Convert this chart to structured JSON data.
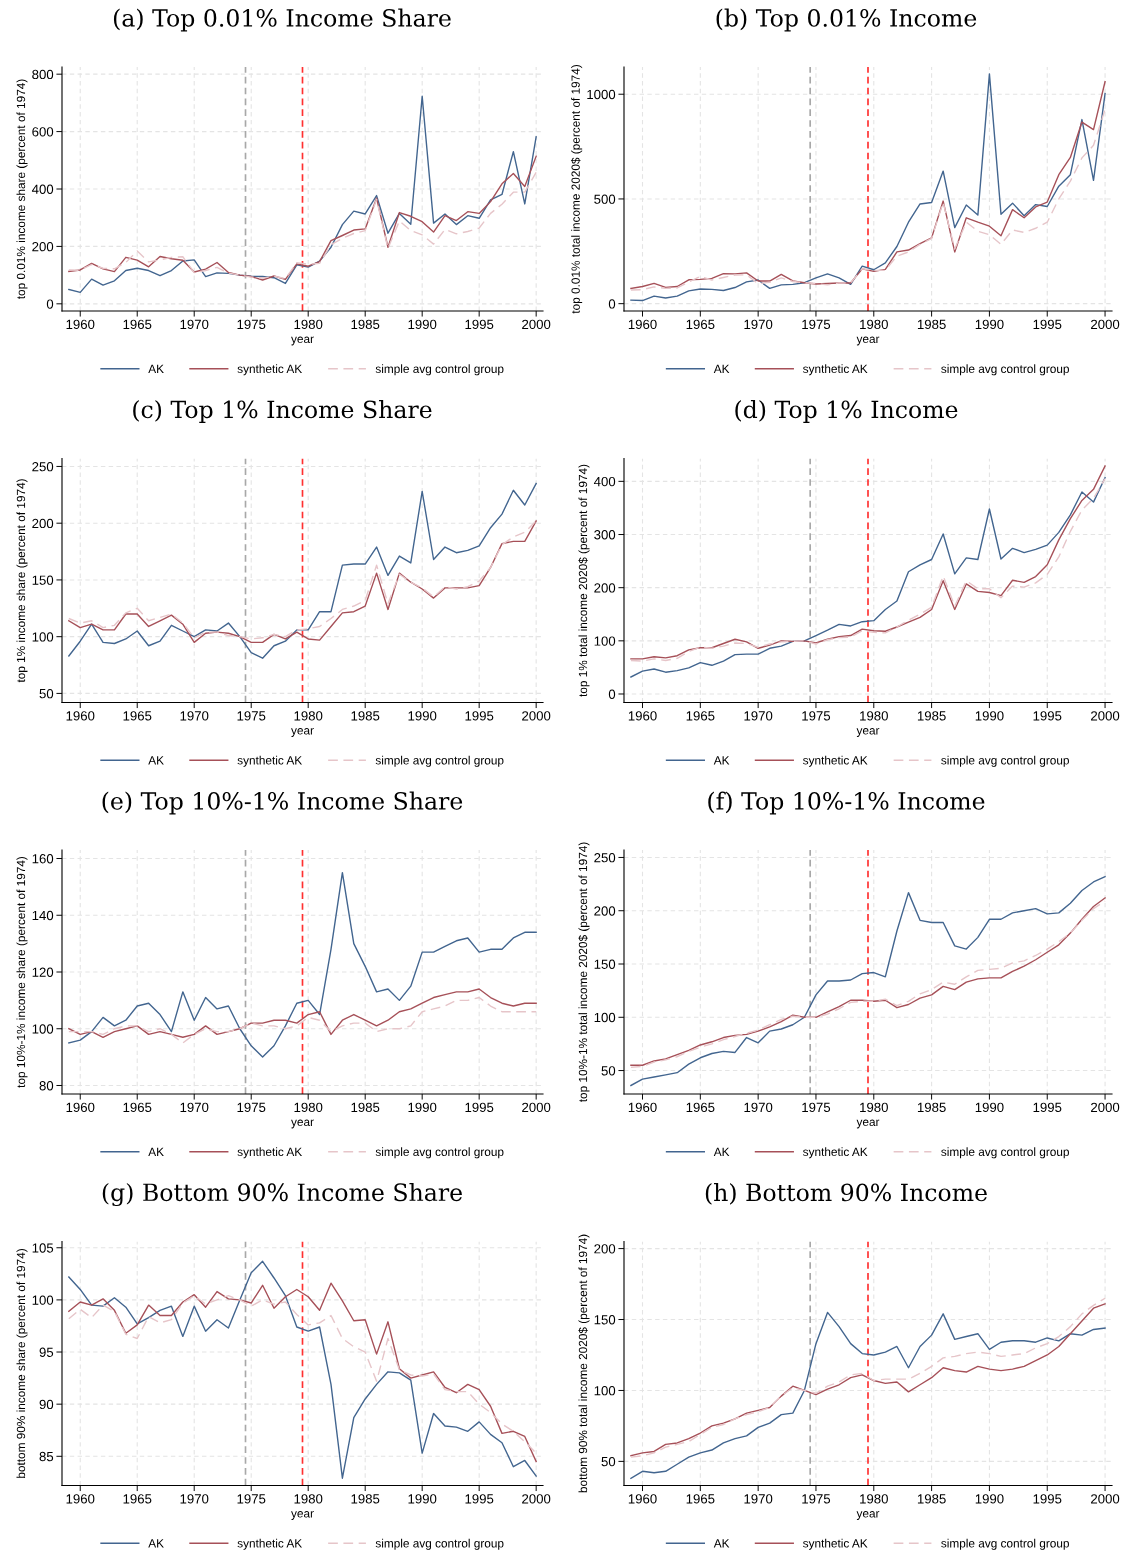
{
  "chart_data": [
    {
      "type": "line",
      "title": "(a) Top 0.01% Income Share",
      "xlabel": "year",
      "ylabel": "top 0.01% income share (percent of 1974)",
      "x": [
        1959,
        1960,
        1961,
        1962,
        1963,
        1964,
        1965,
        1966,
        1967,
        1968,
        1969,
        1970,
        1971,
        1972,
        1973,
        1974,
        1975,
        1976,
        1977,
        1978,
        1979,
        1980,
        1981,
        1982,
        1983,
        1984,
        1985,
        1986,
        1987,
        1988,
        1989,
        1990,
        1991,
        1992,
        1993,
        1994,
        1995,
        1996,
        1997,
        1998,
        1999,
        2000
      ],
      "series": [
        {
          "name": "AK",
          "color": "#42658f",
          "line_style": "solid",
          "values": [
            50,
            40,
            86,
            65,
            80,
            116,
            124,
            116,
            98,
            116,
            149,
            153,
            95,
            108,
            106,
            100,
            96,
            95,
            91,
            71,
            136,
            128,
            149,
            197,
            276,
            323,
            313,
            377,
            246,
            315,
            277,
            723,
            281,
            313,
            276,
            307,
            298,
            362,
            381,
            530,
            348,
            582
          ]
        },
        {
          "name": "synthetic AK",
          "color": "#a65058",
          "line_style": "solid",
          "values": [
            113,
            118,
            141,
            122,
            112,
            162,
            152,
            129,
            165,
            157,
            152,
            111,
            121,
            144,
            109,
            100,
            95,
            83,
            97,
            85,
            139,
            131,
            147,
            220,
            238,
            257,
            261,
            368,
            197,
            318,
            305,
            286,
            250,
            307,
            290,
            321,
            315,
            356,
            418,
            454,
            409,
            514
          ]
        },
        {
          "name": "simple avg control group",
          "color": "#e6c5c9",
          "line_style": "dashed",
          "values": [
            118,
            117,
            137,
            124,
            122,
            144,
            184,
            146,
            153,
            162,
            164,
            109,
            116,
            127,
            107,
            100,
            93,
            90,
            96,
            88,
            143,
            138,
            141,
            206,
            228,
            245,
            255,
            364,
            193,
            289,
            255,
            240,
            208,
            259,
            244,
            252,
            264,
            315,
            347,
            389,
            389,
            458
          ]
        }
      ],
      "xlim": [
        1958.4,
        2000.6
      ],
      "xticks": [
        1960,
        1965,
        1970,
        1975,
        1980,
        1985,
        1990,
        1995,
        2000
      ],
      "ylim": [
        -25,
        825
      ],
      "yticks": [
        0,
        200,
        400,
        600,
        800
      ],
      "ref_lines": [
        {
          "axis": "x",
          "value": 1974.5,
          "color": "#a8a8a8",
          "line_style": "dashed"
        },
        {
          "axis": "x",
          "value": 1979.5,
          "color": "#ff3030",
          "line_style": "dashed"
        }
      ],
      "grid": true,
      "legend": "bottom"
    },
    {
      "type": "line",
      "title": "(b) Top 0.01% Income",
      "xlabel": "year",
      "ylabel": "top 0.01% total income 2020$ (percent of 1974)",
      "x": [
        1959,
        1960,
        1961,
        1962,
        1963,
        1964,
        1965,
        1966,
        1967,
        1968,
        1969,
        1970,
        1971,
        1972,
        1973,
        1974,
        1975,
        1976,
        1977,
        1978,
        1979,
        1980,
        1981,
        1982,
        1983,
        1984,
        1985,
        1986,
        1987,
        1988,
        1989,
        1990,
        1991,
        1992,
        1993,
        1994,
        1995,
        1996,
        1997,
        1998,
        1999,
        2000
      ],
      "series": [
        {
          "name": "AK",
          "color": "#42658f",
          "line_style": "solid",
          "values": [
            17,
            15,
            36,
            27,
            36,
            61,
            70,
            68,
            63,
            77,
            104,
            113,
            73,
            90,
            92,
            100,
            123,
            142,
            123,
            92,
            179,
            162,
            195,
            273,
            389,
            476,
            483,
            633,
            363,
            471,
            423,
            1097,
            427,
            480,
            420,
            473,
            464,
            561,
            616,
            879,
            589,
            1003
          ]
        },
        {
          "name": "synthetic AK",
          "color": "#a65058",
          "line_style": "solid",
          "values": [
            73,
            82,
            97,
            78,
            82,
            114,
            116,
            121,
            143,
            142,
            147,
            108,
            108,
            140,
            109,
            100,
            94,
            96,
            99,
            99,
            166,
            154,
            164,
            247,
            256,
            287,
            314,
            490,
            247,
            410,
            389,
            370,
            324,
            449,
            410,
            462,
            485,
            616,
            698,
            867,
            831,
            1060
          ]
        },
        {
          "name": "simple avg control group",
          "color": "#e6c5c9",
          "line_style": "dashed",
          "values": [
            65,
            67,
            80,
            73,
            75,
            104,
            130,
            113,
            125,
            137,
            138,
            96,
            102,
            123,
            106,
            100,
            96,
            90,
            99,
            99,
            167,
            159,
            159,
            227,
            247,
            283,
            312,
            483,
            261,
            389,
            346,
            329,
            283,
            352,
            340,
            360,
            389,
            500,
            585,
            696,
            756,
            927
          ]
        }
      ],
      "xlim": [
        1958.4,
        2000.6
      ],
      "xticks": [
        1960,
        1965,
        1970,
        1975,
        1980,
        1985,
        1990,
        1995,
        2000
      ],
      "ylim": [
        -35,
        1130
      ],
      "yticks": [
        0,
        500,
        1000
      ],
      "ref_lines": [
        {
          "axis": "x",
          "value": 1974.5,
          "color": "#a8a8a8",
          "line_style": "dashed"
        },
        {
          "axis": "x",
          "value": 1979.5,
          "color": "#ff3030",
          "line_style": "dashed"
        }
      ],
      "grid": true,
      "legend": "bottom"
    },
    {
      "type": "line",
      "title": "(c) Top 1% Income Share",
      "xlabel": "year",
      "ylabel": "top 1% income share (percent of 1974)",
      "x": [
        1959,
        1960,
        1961,
        1962,
        1963,
        1964,
        1965,
        1966,
        1967,
        1968,
        1969,
        1970,
        1971,
        1972,
        1973,
        1974,
        1975,
        1976,
        1977,
        1978,
        1979,
        1980,
        1981,
        1982,
        1983,
        1984,
        1985,
        1986,
        1987,
        1988,
        1989,
        1990,
        1991,
        1992,
        1993,
        1994,
        1995,
        1996,
        1997,
        1998,
        1999,
        2000
      ],
      "series": [
        {
          "name": "AK",
          "color": "#42658f",
          "line_style": "solid",
          "values": [
            83,
            96,
            111,
            95,
            94,
            98,
            105,
            92,
            96,
            110,
            105,
            100,
            106,
            105,
            112,
            100,
            86,
            81,
            92,
            96,
            106,
            106,
            122,
            122,
            163,
            164,
            164,
            179,
            154,
            171,
            165,
            228,
            168,
            179,
            174,
            176,
            180,
            196,
            208,
            229,
            216,
            235
          ]
        },
        {
          "name": "synthetic AK",
          "color": "#a65058",
          "line_style": "solid",
          "values": [
            114,
            108,
            111,
            106,
            106,
            120,
            120,
            109,
            114,
            119,
            111,
            95,
            103,
            104,
            103,
            100,
            95,
            95,
            102,
            98,
            104,
            98,
            97,
            109,
            121,
            122,
            127,
            156,
            124,
            156,
            148,
            142,
            134,
            143,
            143,
            143,
            145,
            161,
            182,
            184,
            184,
            202
          ]
        },
        {
          "name": "simple avg control group",
          "color": "#e6c5c9",
          "line_style": "dashed",
          "values": [
            116,
            112,
            114,
            108,
            110,
            121,
            125,
            114,
            117,
            120,
            112,
            99,
            104,
            104,
            101,
            100,
            98,
            99,
            102,
            100,
            106,
            107,
            109,
            116,
            124,
            127,
            132,
            163,
            129,
            155,
            148,
            143,
            135,
            144,
            142,
            144,
            149,
            161,
            181,
            188,
            192,
            202
          ]
        }
      ],
      "xlim": [
        1958.4,
        2000.6
      ],
      "xticks": [
        1960,
        1965,
        1970,
        1975,
        1980,
        1985,
        1990,
        1995,
        2000
      ],
      "ylim": [
        42,
        257
      ],
      "yticks": [
        50,
        100,
        150,
        200,
        250
      ],
      "ref_lines": [
        {
          "axis": "x",
          "value": 1974.5,
          "color": "#a8a8a8",
          "line_style": "dashed"
        },
        {
          "axis": "x",
          "value": 1979.5,
          "color": "#ff3030",
          "line_style": "dashed"
        }
      ],
      "grid": true,
      "legend": "bottom"
    },
    {
      "type": "line",
      "title": "(d) Top 1% Income",
      "xlabel": "year",
      "ylabel": "top 1% total income 2020$ (percent of 1974)",
      "x": [
        1959,
        1960,
        1961,
        1962,
        1963,
        1964,
        1965,
        1966,
        1967,
        1968,
        1969,
        1970,
        1971,
        1972,
        1973,
        1974,
        1975,
        1976,
        1977,
        1978,
        1979,
        1980,
        1981,
        1982,
        1983,
        1984,
        1985,
        1986,
        1987,
        1988,
        1989,
        1990,
        1991,
        1992,
        1993,
        1994,
        1995,
        1996,
        1997,
        1998,
        1999,
        2000
      ],
      "series": [
        {
          "name": "AK",
          "color": "#42658f",
          "line_style": "solid",
          "values": [
            32,
            43,
            47,
            41,
            44,
            49,
            59,
            54,
            62,
            74,
            75,
            75,
            86,
            90,
            99,
            100,
            110,
            120,
            131,
            128,
            136,
            138,
            159,
            175,
            230,
            243,
            253,
            301,
            226,
            256,
            253,
            348,
            254,
            274,
            266,
            272,
            280,
            304,
            337,
            380,
            361,
            407
          ]
        },
        {
          "name": "synthetic AK",
          "color": "#a65058",
          "line_style": "solid",
          "values": [
            66,
            66,
            70,
            68,
            72,
            83,
            87,
            87,
            95,
            103,
            98,
            86,
            92,
            100,
            99,
            100,
            96,
            103,
            108,
            110,
            122,
            119,
            118,
            126,
            135,
            144,
            159,
            213,
            159,
            207,
            193,
            191,
            185,
            214,
            210,
            221,
            243,
            290,
            330,
            364,
            385,
            429
          ]
        },
        {
          "name": "simple avg control group",
          "color": "#e6c5c9",
          "line_style": "dashed",
          "values": [
            63,
            62,
            66,
            63,
            67,
            80,
            88,
            86,
            90,
            96,
            95,
            88,
            94,
            98,
            99,
            100,
            94,
            102,
            106,
            107,
            119,
            116,
            115,
            126,
            139,
            150,
            163,
            222,
            165,
            213,
            198,
            198,
            181,
            203,
            201,
            209,
            225,
            258,
            306,
            346,
            368,
            405
          ]
        }
      ],
      "xlim": [
        1958.4,
        2000.6
      ],
      "xticks": [
        1960,
        1965,
        1970,
        1975,
        1980,
        1985,
        1990,
        1995,
        2000
      ],
      "ylim": [
        -16,
        443
      ],
      "yticks": [
        0,
        100,
        200,
        300,
        400
      ],
      "ref_lines": [
        {
          "axis": "x",
          "value": 1974.5,
          "color": "#a8a8a8",
          "line_style": "dashed"
        },
        {
          "axis": "x",
          "value": 1979.5,
          "color": "#ff3030",
          "line_style": "dashed"
        }
      ],
      "grid": true,
      "legend": "bottom"
    },
    {
      "type": "line",
      "title": "(e) Top 10%-1% Income Share",
      "xlabel": "year",
      "ylabel": "top 10%-1% income share (percent of 1974)",
      "x": [
        1959,
        1960,
        1961,
        1962,
        1963,
        1964,
        1965,
        1966,
        1967,
        1968,
        1969,
        1970,
        1971,
        1972,
        1973,
        1974,
        1975,
        1976,
        1977,
        1978,
        1979,
        1980,
        1981,
        1982,
        1983,
        1984,
        1985,
        1986,
        1987,
        1988,
        1989,
        1990,
        1991,
        1992,
        1993,
        1994,
        1995,
        1996,
        1997,
        1998,
        1999,
        2000
      ],
      "series": [
        {
          "name": "AK",
          "color": "#42658f",
          "line_style": "solid",
          "values": [
            95,
            96,
            99,
            104,
            101,
            103,
            108,
            109,
            105,
            99,
            113,
            103,
            111,
            107,
            108,
            100,
            94,
            90,
            94,
            101,
            109,
            110,
            105,
            128,
            155,
            130,
            122,
            113,
            114,
            110,
            115,
            127,
            127,
            129,
            131,
            132,
            127,
            128,
            128,
            132,
            134,
            134
          ]
        },
        {
          "name": "synthetic AK",
          "color": "#a65058",
          "line_style": "solid",
          "values": [
            100,
            98,
            99,
            97,
            99,
            100,
            101,
            98,
            99,
            98,
            97,
            98,
            101,
            98,
            99,
            100,
            102,
            102,
            103,
            103,
            102,
            105,
            106,
            98,
            103,
            105,
            103,
            101,
            103,
            106,
            107,
            109,
            111,
            112,
            113,
            113,
            114,
            111,
            109,
            108,
            109,
            109
          ]
        },
        {
          "name": "simple avg control group",
          "color": "#e6c5c9",
          "line_style": "dashed",
          "values": [
            99,
            99,
            99,
            98,
            100,
            101,
            101,
            99,
            100,
            98,
            95,
            98,
            100,
            99,
            99,
            100,
            102,
            101,
            101,
            100,
            101,
            104,
            103,
            99,
            101,
            102,
            102,
            99,
            100,
            100,
            101,
            106,
            107,
            108,
            110,
            110,
            111,
            108,
            106,
            106,
            106,
            106
          ]
        }
      ],
      "xlim": [
        1958.4,
        2000.6
      ],
      "xticks": [
        1960,
        1965,
        1970,
        1975,
        1980,
        1985,
        1990,
        1995,
        2000
      ],
      "ylim": [
        77,
        163
      ],
      "yticks": [
        80,
        100,
        120,
        140,
        160
      ],
      "ref_lines": [
        {
          "axis": "x",
          "value": 1974.5,
          "color": "#a8a8a8",
          "line_style": "dashed"
        },
        {
          "axis": "x",
          "value": 1979.5,
          "color": "#ff3030",
          "line_style": "dashed"
        }
      ],
      "grid": true,
      "legend": "bottom"
    },
    {
      "type": "line",
      "title": "(f) Top 10%-1% Income",
      "xlabel": "year",
      "ylabel": "top 10%-1% total income 2020$ (percent of 1974)",
      "x": [
        1959,
        1960,
        1961,
        1962,
        1963,
        1964,
        1965,
        1966,
        1967,
        1968,
        1969,
        1970,
        1971,
        1972,
        1973,
        1974,
        1975,
        1976,
        1977,
        1978,
        1979,
        1980,
        1981,
        1982,
        1983,
        1984,
        1985,
        1986,
        1987,
        1988,
        1989,
        1990,
        1991,
        1992,
        1993,
        1994,
        1995,
        1996,
        1997,
        1998,
        1999,
        2000
      ],
      "series": [
        {
          "name": "AK",
          "color": "#42658f",
          "line_style": "solid",
          "values": [
            36,
            42,
            44,
            46,
            48,
            56,
            62,
            66,
            68,
            67,
            81,
            76,
            87,
            89,
            93,
            100,
            121,
            134,
            134,
            135,
            141,
            142,
            138,
            181,
            217,
            191,
            189,
            189,
            167,
            164,
            175,
            192,
            192,
            198,
            200,
            202,
            197,
            198,
            207,
            219,
            227,
            232
          ]
        },
        {
          "name": "synthetic AK",
          "color": "#a65058",
          "line_style": "solid",
          "values": [
            55,
            55,
            59,
            61,
            65,
            69,
            74,
            77,
            81,
            83,
            84,
            87,
            91,
            96,
            102,
            100,
            100,
            105,
            110,
            116,
            116,
            115,
            116,
            109,
            112,
            118,
            121,
            129,
            126,
            133,
            136,
            137,
            137,
            143,
            148,
            154,
            161,
            168,
            179,
            192,
            204,
            212
          ]
        },
        {
          "name": "simple avg control group",
          "color": "#e6c5c9",
          "line_style": "dashed",
          "values": [
            53,
            54,
            58,
            60,
            63,
            68,
            72,
            75,
            79,
            82,
            85,
            88,
            93,
            98,
            101,
            100,
            100,
            103,
            108,
            114,
            115,
            115,
            117,
            111,
            115,
            122,
            126,
            133,
            131,
            138,
            144,
            145,
            146,
            151,
            153,
            158,
            164,
            171,
            179,
            191,
            202,
            209
          ]
        }
      ],
      "xlim": [
        1958.4,
        2000.6
      ],
      "xticks": [
        1960,
        1965,
        1970,
        1975,
        1980,
        1985,
        1990,
        1995,
        2000
      ],
      "ylim": [
        28,
        257
      ],
      "yticks": [
        50,
        100,
        150,
        200,
        250
      ],
      "ref_lines": [
        {
          "axis": "x",
          "value": 1974.5,
          "color": "#a8a8a8",
          "line_style": "dashed"
        },
        {
          "axis": "x",
          "value": 1979.5,
          "color": "#ff3030",
          "line_style": "dashed"
        }
      ],
      "grid": true,
      "legend": "bottom"
    },
    {
      "type": "line",
      "title": "(g) Bottom 90% Income Share",
      "xlabel": "year",
      "ylabel": "bottom 90% income share (percent of 1974)",
      "x": [
        1959,
        1960,
        1961,
        1962,
        1963,
        1964,
        1965,
        1966,
        1967,
        1968,
        1969,
        1970,
        1971,
        1972,
        1973,
        1974,
        1975,
        1976,
        1977,
        1978,
        1979,
        1980,
        1981,
        1982,
        1983,
        1984,
        1985,
        1986,
        1987,
        1988,
        1989,
        1990,
        1991,
        1992,
        1993,
        1994,
        1995,
        1996,
        1997,
        1998,
        1999,
        2000
      ],
      "series": [
        {
          "name": "AK",
          "color": "#42658f",
          "line_style": "solid",
          "values": [
            102.2,
            101.0,
            99.5,
            99.4,
            100.2,
            99.3,
            97.7,
            98.3,
            99.0,
            99.4,
            96.5,
            99.4,
            97.0,
            98.1,
            97.3,
            100,
            102.6,
            103.7,
            102.1,
            100.4,
            97.4,
            97.0,
            97.4,
            91.9,
            82.9,
            88.7,
            90.5,
            91.9,
            93.1,
            93.0,
            92.3,
            85.3,
            89.1,
            87.9,
            87.8,
            87.4,
            88.3,
            87.1,
            86.3,
            84.0,
            84.6,
            83.1
          ]
        },
        {
          "name": "synthetic AK",
          "color": "#a65058",
          "line_style": "solid",
          "values": [
            98.9,
            99.8,
            99.5,
            100.1,
            99.0,
            96.8,
            97.6,
            99.5,
            98.5,
            98.5,
            99.8,
            100.5,
            99.3,
            100.8,
            100.1,
            100,
            99.7,
            101.4,
            99.2,
            100.3,
            101.0,
            100.3,
            99.0,
            101.6,
            99.9,
            98.0,
            98.1,
            94.8,
            97.9,
            93.4,
            92.5,
            92.8,
            93.1,
            91.6,
            91.1,
            91.9,
            91.4,
            89.8,
            87.2,
            87.4,
            86.9,
            84.5
          ]
        },
        {
          "name": "simple avg control group",
          "color": "#e6c5c9",
          "line_style": "dashed",
          "values": [
            98.2,
            99.1,
            98.3,
            99.5,
            98.9,
            96.7,
            96.3,
            98.4,
            97.8,
            98.1,
            99.7,
            100.4,
            99.6,
            100.0,
            100.4,
            100,
            99.4,
            100.0,
            99.6,
            99.8,
            98.6,
            97.6,
            97.8,
            98.5,
            96.3,
            95.5,
            95.0,
            92.2,
            96.3,
            93.3,
            92.8,
            92.7,
            92.9,
            91.4,
            91.2,
            91.2,
            90.0,
            89.2,
            88.1,
            87.4,
            86.4,
            85.3
          ]
        }
      ],
      "xlim": [
        1958.4,
        2000.6
      ],
      "xticks": [
        1960,
        1965,
        1970,
        1975,
        1980,
        1985,
        1990,
        1995,
        2000
      ],
      "ylim": [
        82.2,
        105.6
      ],
      "yticks": [
        85,
        90,
        95,
        100,
        105
      ],
      "ref_lines": [
        {
          "axis": "x",
          "value": 1974.5,
          "color": "#a8a8a8",
          "line_style": "dashed"
        },
        {
          "axis": "x",
          "value": 1979.5,
          "color": "#ff3030",
          "line_style": "dashed"
        }
      ],
      "grid": true,
      "legend": "bottom"
    },
    {
      "type": "line",
      "title": "(h) Bottom 90% Income",
      "xlabel": "year",
      "ylabel": "bottom 90% total income 2020$ (percent of 1974)",
      "x": [
        1959,
        1960,
        1961,
        1962,
        1963,
        1964,
        1965,
        1966,
        1967,
        1968,
        1969,
        1970,
        1971,
        1972,
        1973,
        1974,
        1975,
        1976,
        1977,
        1978,
        1979,
        1980,
        1981,
        1982,
        1983,
        1984,
        1985,
        1986,
        1987,
        1988,
        1989,
        1990,
        1991,
        1992,
        1993,
        1994,
        1995,
        1996,
        1997,
        1998,
        1999,
        2000
      ],
      "series": [
        {
          "name": "AK",
          "color": "#42658f",
          "line_style": "solid",
          "values": [
            38,
            43,
            42,
            43,
            48,
            53,
            56,
            58,
            63,
            66,
            68,
            74,
            77,
            83,
            84,
            100,
            133,
            155,
            145,
            133,
            126,
            125,
            127,
            131,
            116,
            131,
            139,
            154,
            136,
            138,
            140,
            129,
            134,
            135,
            135,
            134,
            137,
            135,
            140,
            139,
            143,
            144
          ]
        },
        {
          "name": "synthetic AK",
          "color": "#a65058",
          "line_style": "solid",
          "values": [
            54,
            56,
            57,
            62,
            63,
            66,
            70,
            75,
            77,
            80,
            84,
            86,
            88,
            96,
            103,
            100,
            97,
            101,
            104,
            109,
            111,
            107,
            105,
            106,
            99,
            104,
            109,
            116,
            114,
            113,
            117,
            115,
            114,
            115,
            117,
            121,
            125,
            131,
            140,
            149,
            158,
            161
          ]
        },
        {
          "name": "simple avg control group",
          "color": "#e6c5c9",
          "line_style": "dashed",
          "values": [
            53,
            54,
            56,
            60,
            62,
            64,
            69,
            74,
            76,
            80,
            83,
            85,
            88,
            96,
            102,
            100,
            98,
            103,
            106,
            111,
            112,
            107,
            108,
            108,
            108,
            112,
            117,
            123,
            124,
            126,
            127,
            126,
            124,
            125,
            126,
            130,
            133,
            138,
            145,
            154,
            160,
            165
          ]
        }
      ],
      "xlim": [
        1958.4,
        2000.6
      ],
      "xticks": [
        1960,
        1965,
        1970,
        1975,
        1980,
        1985,
        1990,
        1995,
        2000
      ],
      "ylim": [
        33,
        205
      ],
      "yticks": [
        50,
        100,
        150,
        200
      ],
      "ref_lines": [
        {
          "axis": "x",
          "value": 1974.5,
          "color": "#a8a8a8",
          "line_style": "dashed"
        },
        {
          "axis": "x",
          "value": 1979.5,
          "color": "#ff3030",
          "line_style": "dashed"
        }
      ],
      "grid": true,
      "legend": "bottom"
    }
  ]
}
